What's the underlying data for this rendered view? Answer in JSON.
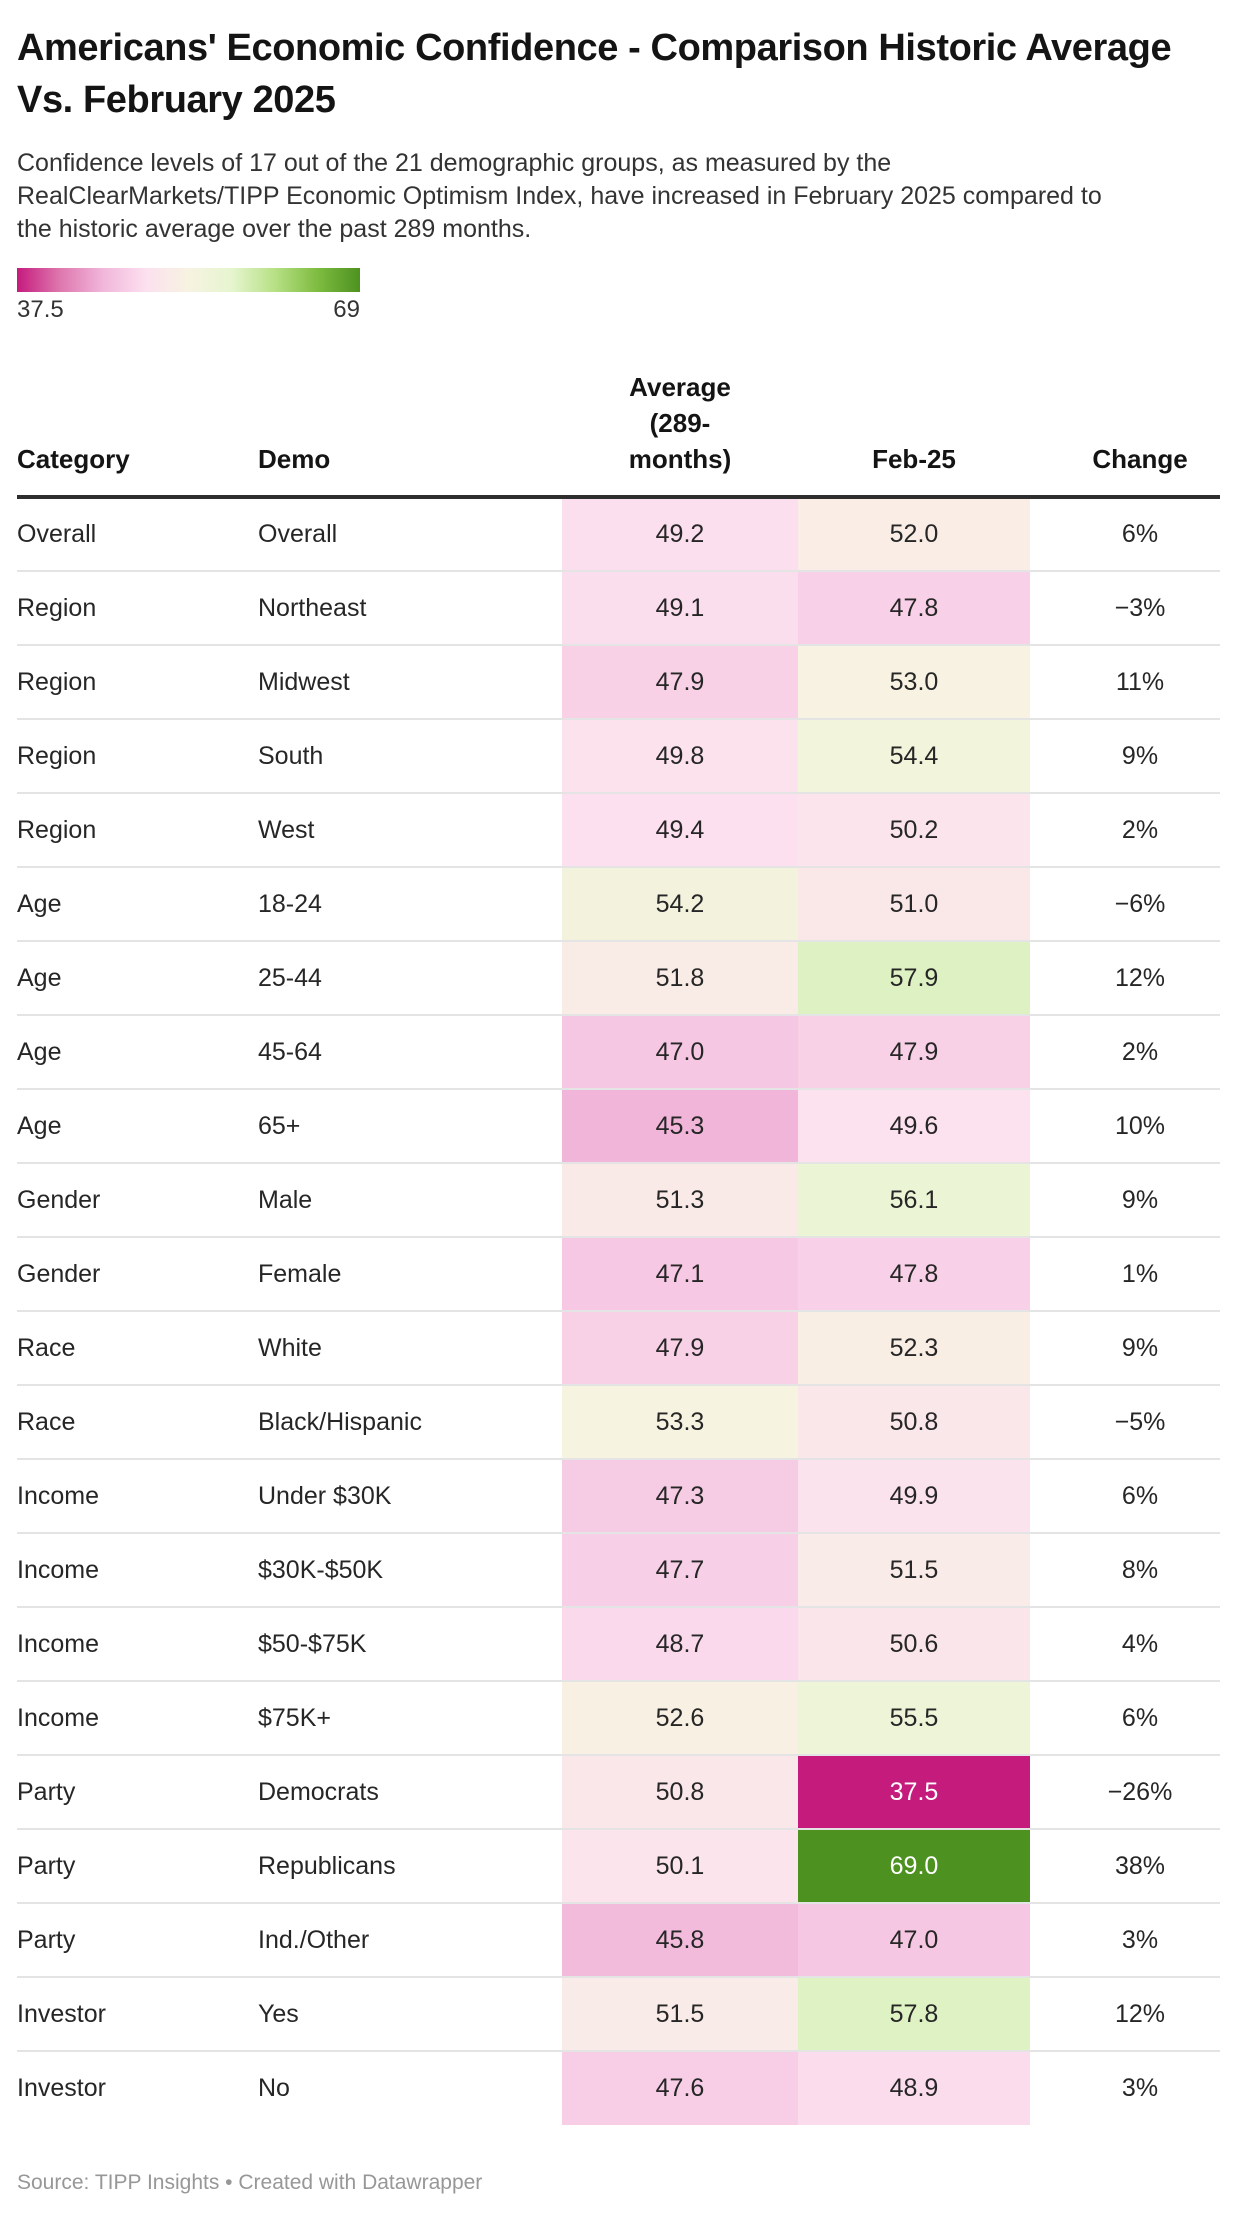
{
  "page": {
    "title": "Americans' Economic Confidence - Comparison Historic Average Vs. February 2025",
    "description": "Confidence levels of 17 out of the 21 demographic groups, as measured by the RealClearMarkets/TIPP Economic Optimism Index, have increased in February 2025 compared to the historic average over the past 289 months.",
    "source": "Source: TIPP Insights • Created with Datawrapper"
  },
  "legend": {
    "min_label": "37.5",
    "max_label": "69"
  },
  "chart_data": {
    "type": "table",
    "title": "Americans' Economic Confidence - Comparison Historic Average Vs. February 2025",
    "columns": [
      "Category",
      "Demo",
      "Average (289-months)",
      "Feb-25",
      "Change"
    ],
    "color_scale": {
      "domain": [
        37.5,
        69
      ],
      "stops": [
        [
          0.0,
          "#C51B7D"
        ],
        [
          0.125,
          "#DE77AE"
        ],
        [
          0.25,
          "#F1B6DA"
        ],
        [
          0.375,
          "#FCE0EF"
        ],
        [
          0.5,
          "#F7F3E1"
        ],
        [
          0.625,
          "#E6F5D0"
        ],
        [
          0.75,
          "#B8E186"
        ],
        [
          0.875,
          "#7FBC41"
        ],
        [
          1.0,
          "#4D9221"
        ]
      ],
      "dark_text_color": "#262626",
      "light_text_color": "#ffffff"
    },
    "rows": [
      {
        "category": "Overall",
        "demo": "Overall",
        "avg": 49.2,
        "feb": 52.0,
        "change": "6%"
      },
      {
        "category": "Region",
        "demo": "Northeast",
        "avg": 49.1,
        "feb": 47.8,
        "change": "−3%"
      },
      {
        "category": "Region",
        "demo": "Midwest",
        "avg": 47.9,
        "feb": 53.0,
        "change": "11%"
      },
      {
        "category": "Region",
        "demo": "South",
        "avg": 49.8,
        "feb": 54.4,
        "change": "9%"
      },
      {
        "category": "Region",
        "demo": "West",
        "avg": 49.4,
        "feb": 50.2,
        "change": "2%"
      },
      {
        "category": "Age",
        "demo": "18-24",
        "avg": 54.2,
        "feb": 51.0,
        "change": "−6%"
      },
      {
        "category": "Age",
        "demo": "25-44",
        "avg": 51.8,
        "feb": 57.9,
        "change": "12%"
      },
      {
        "category": "Age",
        "demo": "45-64",
        "avg": 47.0,
        "feb": 47.9,
        "change": "2%"
      },
      {
        "category": "Age",
        "demo": "65+",
        "avg": 45.3,
        "feb": 49.6,
        "change": "10%"
      },
      {
        "category": "Gender",
        "demo": "Male",
        "avg": 51.3,
        "feb": 56.1,
        "change": "9%"
      },
      {
        "category": "Gender",
        "demo": "Female",
        "avg": 47.1,
        "feb": 47.8,
        "change": "1%"
      },
      {
        "category": "Race",
        "demo": "White",
        "avg": 47.9,
        "feb": 52.3,
        "change": "9%"
      },
      {
        "category": "Race",
        "demo": "Black/Hispanic",
        "avg": 53.3,
        "feb": 50.8,
        "change": "−5%"
      },
      {
        "category": "Income",
        "demo": "Under $30K",
        "avg": 47.3,
        "feb": 49.9,
        "change": "6%"
      },
      {
        "category": "Income",
        "demo": "$30K-$50K",
        "avg": 47.7,
        "feb": 51.5,
        "change": "8%"
      },
      {
        "category": "Income",
        "demo": "$50-$75K",
        "avg": 48.7,
        "feb": 50.6,
        "change": "4%"
      },
      {
        "category": "Income",
        "demo": "$75K+",
        "avg": 52.6,
        "feb": 55.5,
        "change": "6%"
      },
      {
        "category": "Party",
        "demo": "Democrats",
        "avg": 50.8,
        "feb": 37.5,
        "change": "−26%"
      },
      {
        "category": "Party",
        "demo": "Republicans",
        "avg": 50.1,
        "feb": 69.0,
        "change": "38%"
      },
      {
        "category": "Party",
        "demo": "Ind./Other",
        "avg": 45.8,
        "feb": 47.0,
        "change": "3%"
      },
      {
        "category": "Investor",
        "demo": "Yes",
        "avg": 51.5,
        "feb": 57.8,
        "change": "12%"
      },
      {
        "category": "Investor",
        "demo": "No",
        "avg": 47.6,
        "feb": 48.9,
        "change": "3%"
      }
    ]
  }
}
